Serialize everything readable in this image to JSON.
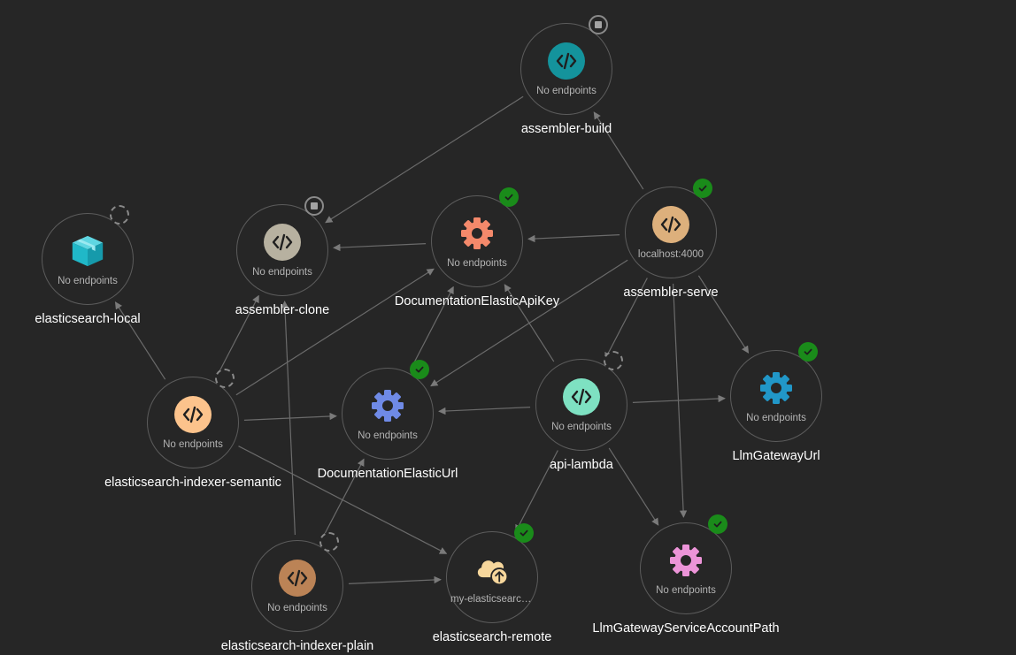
{
  "graph": {
    "nodes": {
      "assembler_build": {
        "label": "assembler-build",
        "endpoint": "No endpoints",
        "icon": "code-icon",
        "color": "#14939c",
        "status": "stopped"
      },
      "elasticsearch_local": {
        "label": "elasticsearch-local",
        "endpoint": "No endpoints",
        "icon": "container-box-icon",
        "color": "#20b8c8",
        "status": "waiting"
      },
      "assembler_clone": {
        "label": "assembler-clone",
        "endpoint": "No endpoints",
        "icon": "code-icon",
        "color": "#b7b1a0",
        "status": "stopped"
      },
      "documentation_elastic_api_key": {
        "label": "DocumentationElasticApiKey",
        "endpoint": "No endpoints",
        "icon": "gear-icon",
        "color": "#f4896b",
        "status": "running"
      },
      "assembler_serve": {
        "label": "assembler-serve",
        "endpoint": "localhost:4000",
        "icon": "code-icon",
        "color": "#ddb07c",
        "status": "running"
      },
      "elasticsearch_indexer_semantic": {
        "label": "elasticsearch-indexer-semantic",
        "endpoint": "No endpoints",
        "icon": "code-icon",
        "color": "#fcc38c",
        "status": "waiting"
      },
      "documentation_elastic_url": {
        "label": "DocumentationElasticUrl",
        "endpoint": "No endpoints",
        "icon": "gear-icon",
        "color": "#6f8ae6",
        "status": "running"
      },
      "api_lambda": {
        "label": "api-lambda",
        "endpoint": "No endpoints",
        "icon": "code-icon",
        "color": "#7ee1c2",
        "status": "waiting"
      },
      "llm_gateway_url": {
        "label": "LlmGatewayUrl",
        "endpoint": "No endpoints",
        "icon": "gear-icon",
        "color": "#2197c8",
        "status": "running"
      },
      "elasticsearch_indexer_plain": {
        "label": "elasticsearch-indexer-plain",
        "endpoint": "No endpoints",
        "icon": "code-icon",
        "color": "#bb8356",
        "status": "waiting"
      },
      "elasticsearch_remote": {
        "label": "elasticsearch-remote",
        "endpoint": "my-elasticsearch-remote",
        "icon": "cloud-upload-icon",
        "color": "#f7d79c",
        "status": "running"
      },
      "llm_gateway_service_account_path": {
        "label": "LlmGatewayServiceAccountPath",
        "endpoint": "No endpoints",
        "icon": "gear-icon",
        "color": "#ec94d8",
        "status": "running"
      }
    },
    "edges": [
      {
        "from": "assembler_build",
        "to": "assembler_clone"
      },
      {
        "from": "assembler_serve",
        "to": "assembler_build"
      },
      {
        "from": "assembler_serve",
        "to": "documentation_elastic_api_key"
      },
      {
        "from": "documentation_elastic_api_key",
        "to": "assembler_clone"
      },
      {
        "from": "assembler_serve",
        "to": "documentation_elastic_url"
      },
      {
        "from": "assembler_serve",
        "to": "api_lambda"
      },
      {
        "from": "assembler_serve",
        "to": "llm_gateway_url"
      },
      {
        "from": "assembler_serve",
        "to": "llm_gateway_service_account_path"
      },
      {
        "from": "elasticsearch_indexer_semantic",
        "to": "elasticsearch_local"
      },
      {
        "from": "elasticsearch_indexer_semantic",
        "to": "assembler_clone"
      },
      {
        "from": "elasticsearch_indexer_semantic",
        "to": "documentation_elastic_api_key"
      },
      {
        "from": "elasticsearch_indexer_semantic",
        "to": "documentation_elastic_url"
      },
      {
        "from": "elasticsearch_indexer_semantic",
        "to": "elasticsearch_remote"
      },
      {
        "from": "documentation_elastic_url",
        "to": "documentation_elastic_api_key"
      },
      {
        "from": "api_lambda",
        "to": "documentation_elastic_api_key"
      },
      {
        "from": "api_lambda",
        "to": "documentation_elastic_url"
      },
      {
        "from": "api_lambda",
        "to": "llm_gateway_url"
      },
      {
        "from": "api_lambda",
        "to": "elasticsearch_remote"
      },
      {
        "from": "api_lambda",
        "to": "llm_gateway_service_account_path"
      },
      {
        "from": "elasticsearch_indexer_plain",
        "to": "assembler_clone"
      },
      {
        "from": "elasticsearch_indexer_plain",
        "to": "documentation_elastic_url"
      },
      {
        "from": "elasticsearch_indexer_plain",
        "to": "elasticsearch_remote"
      }
    ]
  }
}
